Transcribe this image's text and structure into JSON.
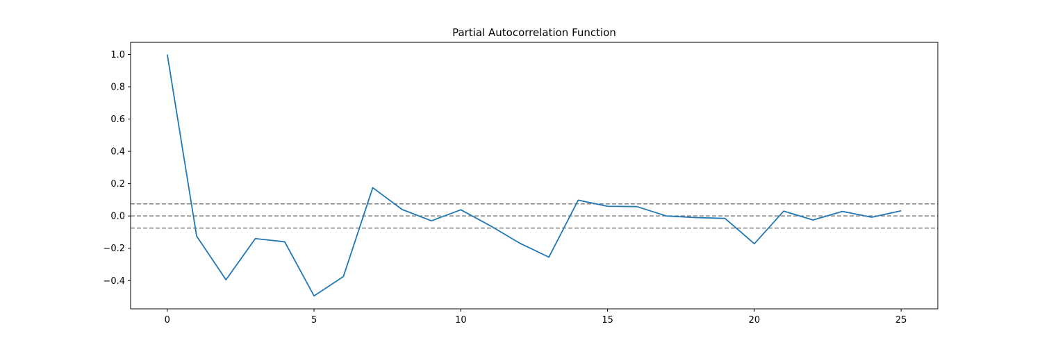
{
  "chart_data": {
    "type": "line",
    "title": "Partial Autocorrelation Function",
    "xlabel": "",
    "ylabel": "",
    "xlim": [
      -1.25,
      26.25
    ],
    "ylim": [
      -0.575,
      1.075
    ],
    "x_ticks": [
      0,
      5,
      10,
      15,
      20,
      25
    ],
    "y_ticks": [
      -0.4,
      -0.2,
      0.0,
      0.2,
      0.4,
      0.6,
      0.8,
      1.0
    ],
    "x_tick_labels": [
      "0",
      "5",
      "10",
      "15",
      "20",
      "25"
    ],
    "y_tick_labels": [
      "−0.4",
      "−0.2",
      "0.0",
      "0.2",
      "0.4",
      "0.6",
      "0.8",
      "1.0"
    ],
    "grid": false,
    "series": [
      {
        "color": "#1f77b4",
        "x": [
          0,
          1,
          2,
          3,
          4,
          5,
          6,
          7,
          8,
          9,
          10,
          11,
          12,
          13,
          14,
          15,
          16,
          17,
          18,
          19,
          20,
          21,
          22,
          23,
          24,
          25
        ],
        "y": [
          1.0,
          -0.125,
          -0.395,
          -0.14,
          -0.16,
          -0.495,
          -0.375,
          0.175,
          0.04,
          -0.03,
          0.038,
          -0.06,
          -0.168,
          -0.255,
          0.098,
          0.06,
          0.058,
          0.0,
          -0.01,
          -0.015,
          -0.172,
          0.03,
          -0.025,
          0.028,
          -0.008,
          0.032
        ]
      }
    ],
    "reference_lines": [
      {
        "y": 0.075,
        "color": "#808080",
        "style": "dashed"
      },
      {
        "y": 0.0,
        "color": "#808080",
        "style": "dashed"
      },
      {
        "y": -0.075,
        "color": "#808080",
        "style": "dashed"
      }
    ]
  }
}
